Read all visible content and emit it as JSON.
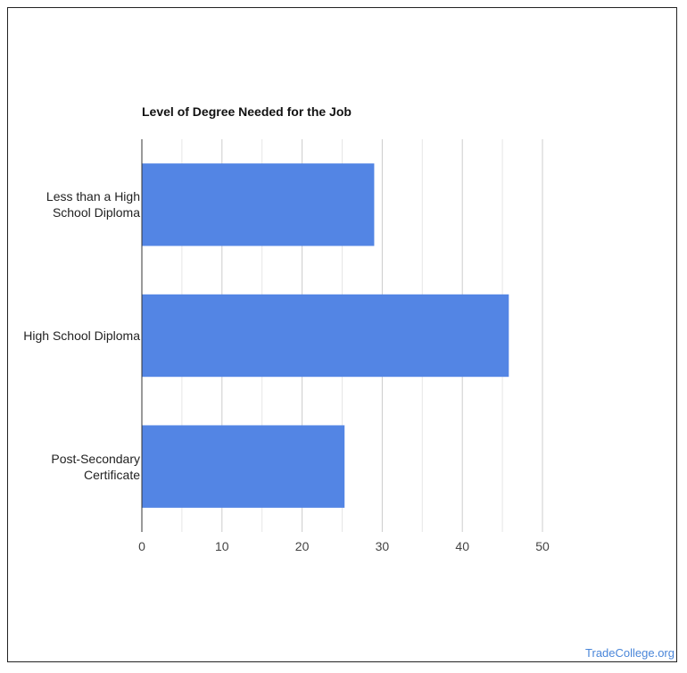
{
  "chart_data": {
    "type": "bar",
    "orientation": "horizontal",
    "title": "Level of Degree Needed for the Job",
    "categories": [
      "Less than a High School Diploma",
      "High School Diploma",
      "Post-Secondary Certificate"
    ],
    "category_lines": [
      [
        "Less than a High",
        "School Diploma"
      ],
      [
        "High School Diploma"
      ],
      [
        "Post-Secondary",
        "Certificate"
      ]
    ],
    "values": [
      29,
      45.8,
      25.3
    ],
    "xlim": [
      0,
      50
    ],
    "xticks": [
      0,
      10,
      20,
      30,
      40,
      50
    ],
    "grid": true,
    "bar_color": "#5385e4"
  },
  "credit": "TradeCollege.org"
}
